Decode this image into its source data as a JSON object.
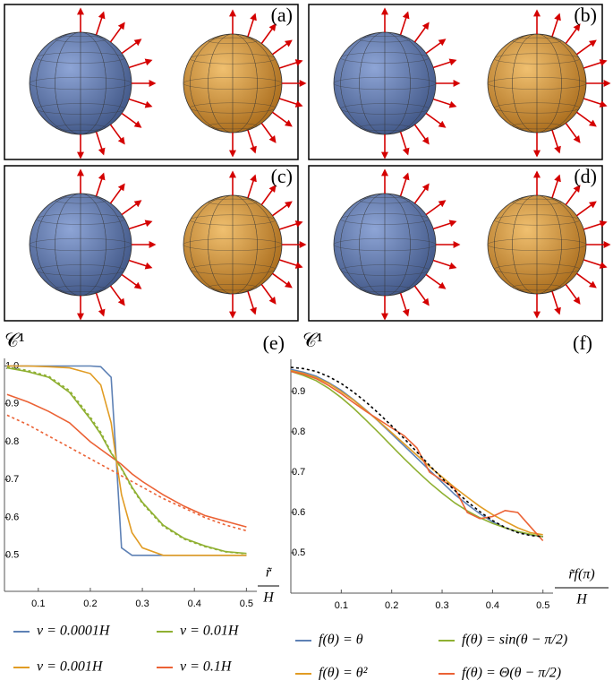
{
  "panels": [
    {
      "label": "(a)"
    },
    {
      "label": "(b)"
    },
    {
      "label": "(c)"
    },
    {
      "label": "(d)"
    }
  ],
  "chart_data": [
    {
      "type": "line",
      "label": "(e)",
      "ylabel": "𝒞¹",
      "xlabel": {
        "numerator": "r̃",
        "denominator": "H"
      },
      "x": [
        0.04,
        0.08,
        0.12,
        0.16,
        0.2,
        0.22,
        0.24,
        0.25,
        0.26,
        0.28,
        0.3,
        0.34,
        0.38,
        0.42,
        0.46,
        0.5
      ],
      "xlim": [
        0.035,
        0.52
      ],
      "ylim": [
        0.405,
        1.02
      ],
      "xticks": [
        0.1,
        0.2,
        0.3,
        0.4,
        0.5
      ],
      "yticks": [
        0.5,
        0.6,
        0.7,
        0.8,
        0.9,
        {
          "value": 1,
          "label": "1.0"
        }
      ],
      "series": [
        {
          "name": "v = 0.0001H",
          "color": "#5e81b5",
          "values": [
            1,
            1,
            1,
            1,
            1,
            0.998,
            0.97,
            0.75,
            0.52,
            0.5,
            0.5,
            0.5,
            0.5,
            0.5,
            0.5,
            0.5
          ]
        },
        {
          "name": "v = 0.01H",
          "color": "#8fb032",
          "values": [
            0.995,
            0.985,
            0.97,
            0.93,
            0.86,
            0.82,
            0.77,
            0.75,
            0.73,
            0.68,
            0.64,
            0.58,
            0.545,
            0.525,
            0.51,
            0.505
          ]
        },
        {
          "name": "v = 0.001H",
          "color": "#e19c24",
          "values": [
            1,
            1,
            0.998,
            0.995,
            0.98,
            0.95,
            0.85,
            0.75,
            0.66,
            0.56,
            0.52,
            0.5,
            0.5,
            0.5,
            0.5,
            0.5
          ]
        },
        {
          "name": "v = 0.1H",
          "color": "#eb6235",
          "values": [
            0.925,
            0.905,
            0.88,
            0.85,
            0.8,
            0.78,
            0.76,
            0.75,
            0.74,
            0.715,
            0.695,
            0.66,
            0.63,
            0.605,
            0.59,
            0.575
          ]
        },
        {
          "color": "#8fb032",
          "dash": true,
          "values": [
            0.997,
            0.988,
            0.973,
            0.935,
            0.865,
            0.825,
            0.772,
            0.75,
            0.728,
            0.677,
            0.637,
            0.577,
            0.543,
            0.523,
            0.509,
            0.504
          ]
        },
        {
          "color": "#eb6235",
          "dash": true,
          "values": [
            0.87,
            0.845,
            0.815,
            0.785,
            0.755,
            0.74,
            0.725,
            0.718,
            0.71,
            0.695,
            0.68,
            0.65,
            0.625,
            0.6,
            0.58,
            0.565
          ]
        }
      ]
    },
    {
      "type": "line",
      "label": "(f)",
      "ylabel": "𝒞¹",
      "xlabel": {
        "numerator": "r̃f(π)",
        "denominator": "H"
      },
      "x": [
        0,
        0.025,
        0.05,
        0.075,
        0.1,
        0.125,
        0.15,
        0.175,
        0.2,
        0.225,
        0.25,
        0.275,
        0.3,
        0.325,
        0.35,
        0.375,
        0.4,
        0.425,
        0.45,
        0.475,
        0.5
      ],
      "xlim": [
        0,
        0.52
      ],
      "ylim": [
        0.4,
        0.98
      ],
      "xticks": [
        0.1,
        0.2,
        0.3,
        0.4,
        0.5
      ],
      "yticks": [
        0.5,
        0.6,
        0.7,
        0.8,
        0.9
      ],
      "series": [
        {
          "name": "f(θ) = θ",
          "color": "#5e81b5",
          "values": [
            0.955,
            0.948,
            0.938,
            0.922,
            0.903,
            0.879,
            0.853,
            0.825,
            0.795,
            0.765,
            0.735,
            0.705,
            0.675,
            0.645,
            0.62,
            0.597,
            0.577,
            0.562,
            0.552,
            0.545,
            0.54
          ]
        },
        {
          "name": "f(θ) = sin(θ − π/2)",
          "color": "#8fb032",
          "values": [
            0.95,
            0.94,
            0.927,
            0.908,
            0.885,
            0.858,
            0.828,
            0.797,
            0.765,
            0.733,
            0.703,
            0.674,
            0.648,
            0.624,
            0.604,
            0.587,
            0.573,
            0.562,
            0.553,
            0.546,
            0.54
          ]
        },
        {
          "name": "f(θ) = θ²",
          "color": "#e19c24",
          "values": [
            0.952,
            0.945,
            0.935,
            0.92,
            0.9,
            0.878,
            0.852,
            0.826,
            0.798,
            0.77,
            0.742,
            0.714,
            0.688,
            0.662,
            0.638,
            0.615,
            0.595,
            0.578,
            0.562,
            0.55,
            0.545
          ]
        },
        {
          "name": "f(θ) = Θ(θ − π/2)",
          "color": "#eb6235",
          "values": [
            0.95,
            0.943,
            0.932,
            0.915,
            0.895,
            0.872,
            0.85,
            0.83,
            0.81,
            0.79,
            0.76,
            0.7,
            0.68,
            0.66,
            0.6,
            0.585,
            0.59,
            0.605,
            0.6,
            0.565,
            0.53
          ]
        },
        {
          "color": "#000000",
          "dash": true,
          "values": [
            0.96,
            0.957,
            0.95,
            0.937,
            0.92,
            0.898,
            0.873,
            0.845,
            0.815,
            0.783,
            0.75,
            0.717,
            0.685,
            0.655,
            0.627,
            0.602,
            0.58,
            0.563,
            0.55,
            0.543,
            0.54
          ]
        }
      ]
    }
  ]
}
